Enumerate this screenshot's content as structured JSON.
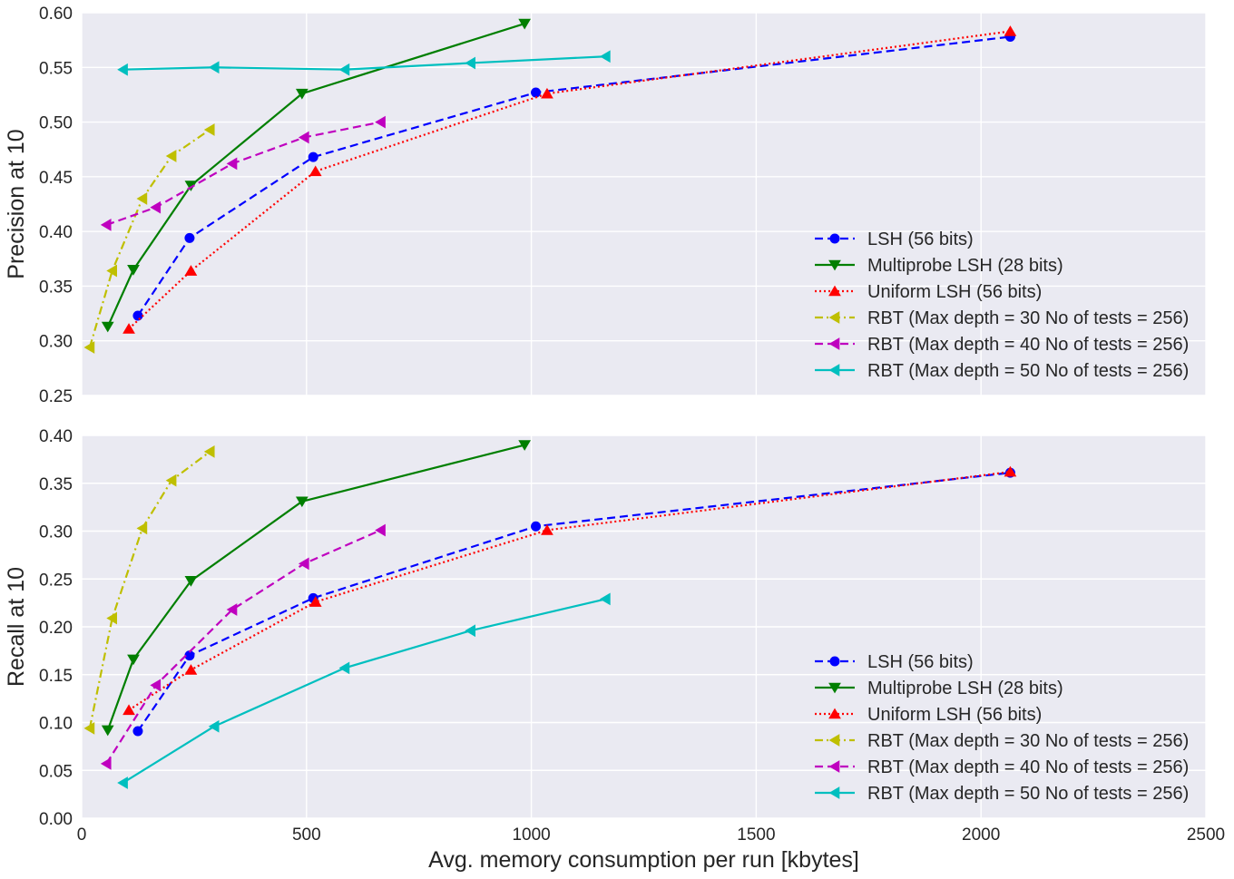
{
  "chart_data": {
    "type": "line",
    "x_label": "Avg. memory consumption per run [kbytes]",
    "xlim": [
      0,
      2500
    ],
    "x_ticks": [
      "0",
      "500",
      "1000",
      "1500",
      "2000",
      "2500"
    ],
    "grid": true,
    "legend_position": "lower-right",
    "series_styles": [
      {
        "name": "LSH (56 bits)",
        "color": "#0000ff",
        "marker": "circle",
        "dash": "dashed"
      },
      {
        "name": "Multiprobe LSH (28 bits)",
        "color": "#007f00",
        "marker": "triangle-down",
        "dash": "solid"
      },
      {
        "name": "Uniform LSH (56 bits)",
        "color": "#ff0000",
        "marker": "triangle-up",
        "dash": "dotted"
      },
      {
        "name": "RBT (Max depth = 30 No of tests = 256)",
        "color": "#bfbf00",
        "marker": "triangle-left",
        "dash": "dashdot"
      },
      {
        "name": "RBT (Max depth = 40 No of tests = 256)",
        "color": "#bf00bf",
        "marker": "triangle-left",
        "dash": "dashed"
      },
      {
        "name": "RBT (Max depth = 50 No of tests = 256)",
        "color": "#00bfbf",
        "marker": "triangle-left",
        "dash": "solid"
      }
    ],
    "panels": [
      {
        "id": "precision",
        "y_label": "Precision at 10",
        "ylim": [
          0.25,
          0.6
        ],
        "y_ticks": [
          "0.25",
          "0.30",
          "0.35",
          "0.40",
          "0.45",
          "0.50",
          "0.55",
          "0.60"
        ],
        "series": [
          {
            "x": [
              125,
              240,
              515,
              1010,
              2065
            ],
            "y": [
              0.323,
              0.394,
              0.468,
              0.527,
              0.578
            ]
          },
          {
            "x": [
              58,
              115,
              243,
              490,
              985
            ],
            "y": [
              0.313,
              0.365,
              0.442,
              0.526,
              0.59
            ]
          },
          {
            "x": [
              105,
              243,
              520,
              1035,
              2065
            ],
            "y": [
              0.311,
              0.364,
              0.455,
              0.526,
              0.583
            ]
          },
          {
            "x": [
              18,
              68,
              135,
              200,
              285
            ],
            "y": [
              0.294,
              0.364,
              0.43,
              0.469,
              0.493
            ]
          },
          {
            "x": [
              55,
              165,
              335,
              495,
              665
            ],
            "y": [
              0.406,
              0.422,
              0.462,
              0.486,
              0.5
            ]
          },
          {
            "x": [
              92,
              295,
              585,
              865,
              1165
            ],
            "y": [
              0.548,
              0.55,
              0.548,
              0.554,
              0.56
            ]
          }
        ]
      },
      {
        "id": "recall",
        "y_label": "Recall at 10",
        "ylim": [
          0.0,
          0.4
        ],
        "y_ticks": [
          "0.00",
          "0.05",
          "0.10",
          "0.15",
          "0.20",
          "0.25",
          "0.30",
          "0.35",
          "0.40"
        ],
        "series": [
          {
            "x": [
              125,
              240,
              515,
              1010,
              2065
            ],
            "y": [
              0.091,
              0.17,
              0.23,
              0.305,
              0.361
            ]
          },
          {
            "x": [
              58,
              115,
              243,
              490,
              985
            ],
            "y": [
              0.092,
              0.166,
              0.248,
              0.331,
              0.39
            ]
          },
          {
            "x": [
              105,
              243,
              520,
              1035,
              2065
            ],
            "y": [
              0.113,
              0.155,
              0.226,
              0.301,
              0.362
            ]
          },
          {
            "x": [
              18,
              68,
              135,
              200,
              285
            ],
            "y": [
              0.094,
              0.209,
              0.303,
              0.353,
              0.383
            ]
          },
          {
            "x": [
              55,
              165,
              335,
              495,
              665
            ],
            "y": [
              0.057,
              0.139,
              0.218,
              0.266,
              0.301
            ]
          },
          {
            "x": [
              92,
              295,
              585,
              865,
              1165
            ],
            "y": [
              0.037,
              0.096,
              0.157,
              0.196,
              0.229
            ]
          }
        ]
      }
    ]
  }
}
